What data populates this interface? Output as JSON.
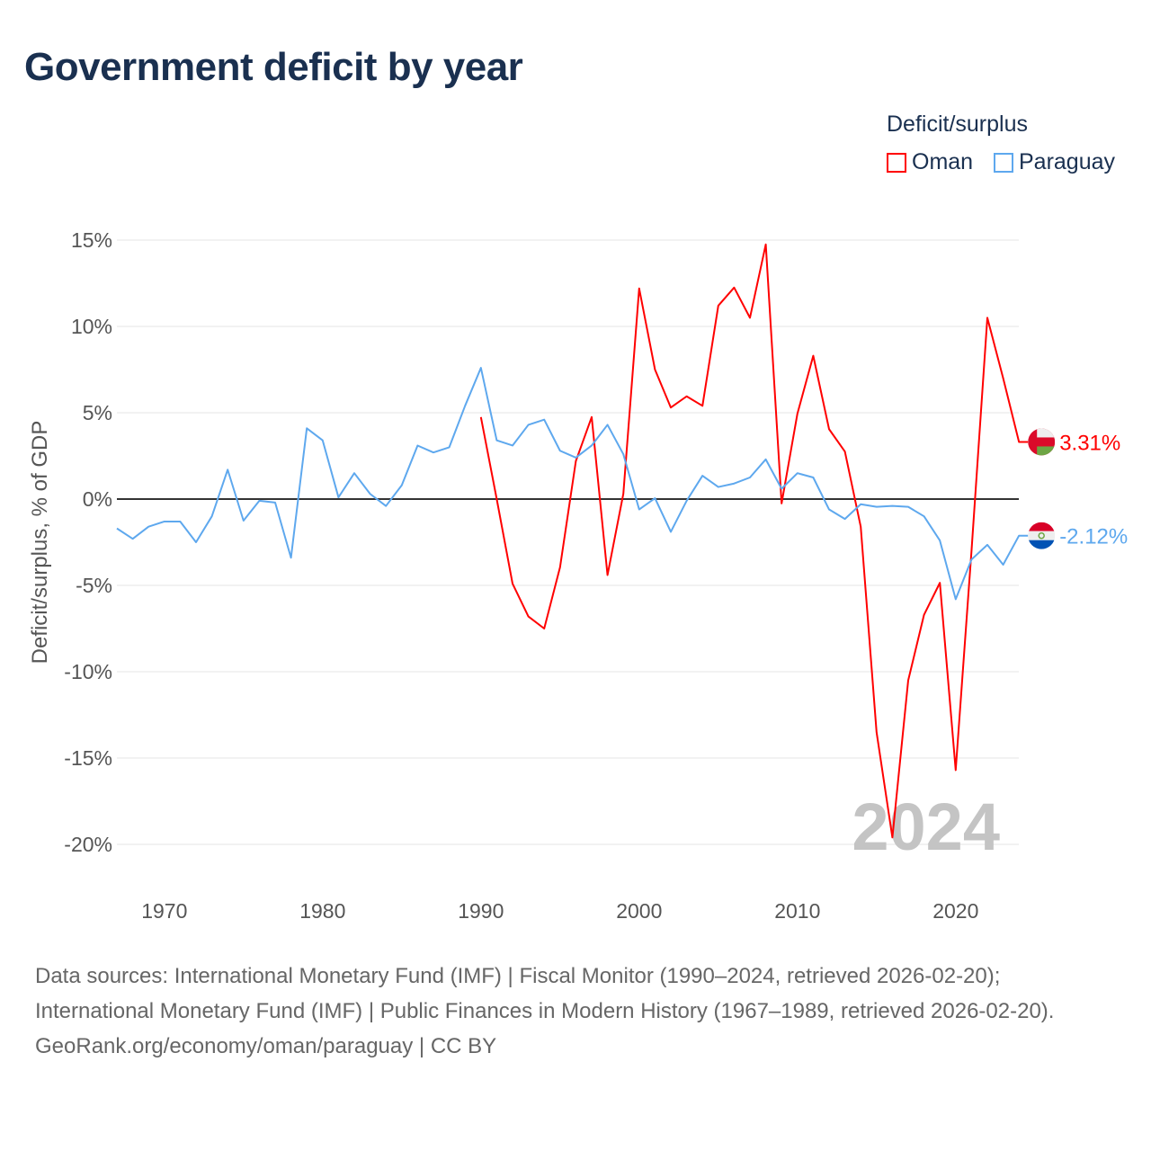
{
  "title": "Government deficit by year",
  "legend": {
    "title": "Deficit/surplus",
    "items": [
      {
        "label": "Oman",
        "color": "#ff0000"
      },
      {
        "label": "Paraguay",
        "color": "#5ea8ee"
      }
    ]
  },
  "watermark_year": "2024",
  "footer": {
    "sources": "Data sources: International Monetary Fund (IMF) | Fiscal Monitor (1990–2024, retrieved 2026-02-20); International Monetary Fund (IMF) | Public Finances in Modern History (1967–1989, retrieved 2026-02-20).",
    "credit": "GeoRank.org/economy/oman/paraguay | CC BY"
  },
  "chart_data": {
    "type": "line",
    "title": "Government deficit by year",
    "xlabel": "",
    "ylabel": "Deficit/surplus, % of GDP",
    "xlim": [
      1967,
      2024
    ],
    "ylim": [
      -22,
      16
    ],
    "yticks": [
      15,
      10,
      5,
      0,
      -5,
      -10,
      -15,
      -20
    ],
    "ytick_labels": [
      "15%",
      "10%",
      "5%",
      "0%",
      "-5%",
      "-10%",
      "-15%",
      "-20%"
    ],
    "xticks": [
      1970,
      1980,
      1990,
      2000,
      2010,
      2020
    ],
    "xtick_labels": [
      "1970",
      "1980",
      "1990",
      "2000",
      "2010",
      "2020"
    ],
    "grid": true,
    "legend_position": "top-right",
    "series": [
      {
        "name": "Oman",
        "color": "#ff0000",
        "start_year": 1990,
        "end_label": "3.31%",
        "values": [
          4.75,
          0,
          -4.9,
          -6.8,
          -7.5,
          -3.95,
          2.2,
          4.75,
          -4.4,
          0.3,
          12.2,
          7.5,
          5.3,
          5.95,
          5.4,
          11.2,
          12.25,
          10.5,
          14.75,
          -0.25,
          4.95,
          8.3,
          4.05,
          2.75,
          -1.6,
          -13.5,
          -19.6,
          -10.5,
          -6.7,
          -4.85,
          -15.7,
          -3.0,
          10.5,
          7.0,
          3.31
        ]
      },
      {
        "name": "Paraguay",
        "color": "#5ea8ee",
        "start_year": 1967,
        "end_label": "-2.12%",
        "values": [
          -1.7,
          -2.3,
          -1.6,
          -1.3,
          -1.3,
          -2.5,
          -1.0,
          1.7,
          -1.25,
          -0.1,
          -0.2,
          -3.4,
          4.1,
          3.4,
          0.1,
          1.5,
          0.3,
          -0.4,
          0.8,
          3.1,
          2.7,
          3.0,
          5.4,
          7.6,
          3.4,
          3.1,
          4.3,
          4.6,
          2.8,
          2.4,
          3.1,
          4.3,
          2.6,
          -0.6,
          0.05,
          -1.9,
          -0.1,
          1.35,
          0.7,
          0.9,
          1.25,
          2.3,
          0.6,
          1.5,
          1.25,
          -0.6,
          -1.15,
          -0.3,
          -0.45,
          -0.4,
          -0.45,
          -1.0,
          -2.4,
          -5.8,
          -3.5,
          -2.65,
          -3.8,
          -2.12
        ]
      }
    ]
  }
}
